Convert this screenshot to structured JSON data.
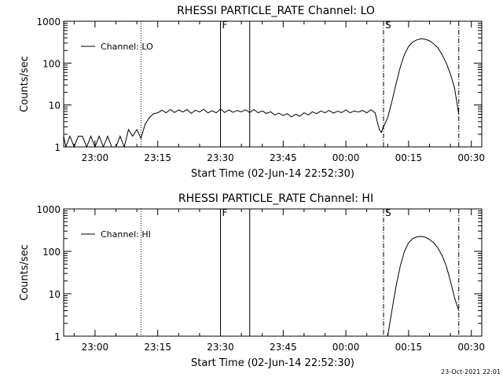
{
  "footer": {
    "timestamp": "23-Oct-2021 22:01"
  },
  "chart_data": [
    {
      "type": "line",
      "title": "RHESSI PARTICLE_RATE Channel: LO",
      "xlabel": "Start Time (02-Jun-14 22:52:30)",
      "ylabel": "Counts/sec",
      "yscale": "log",
      "ylim": [
        1,
        1000
      ],
      "xlim": [
        "22:52:30",
        "00:32:30"
      ],
      "x_tick_labels": [
        "23:00",
        "23:15",
        "23:30",
        "23:45",
        "00:00",
        "00:15",
        "00:30"
      ],
      "y_tick_labels": [
        "1",
        "10",
        "100",
        "1000"
      ],
      "legend": {
        "position": "top-left",
        "entries": [
          "Channel: LO"
        ]
      },
      "markers": [
        {
          "time": "23:11",
          "style": "dotted"
        },
        {
          "time": "23:30",
          "style": "solid",
          "label": "F"
        },
        {
          "time": "23:37",
          "style": "solid"
        },
        {
          "time": "00:09",
          "style": "dash-dot",
          "label": "S"
        },
        {
          "time": "00:27",
          "style": "dash-dot"
        }
      ],
      "series": [
        {
          "name": "Channel: LO",
          "segments": [
            {
              "x": [
                "22:52:30",
                "22:53",
                "22:54",
                "22:55",
                "22:56",
                "22:57",
                "22:58",
                "22:59",
                "23:00",
                "23:01",
                "23:02",
                "23:03",
                "23:04",
                "23:05",
                "23:06",
                "23:07",
                "23:08",
                "23:09",
                "23:10",
                "23:11",
                "23:12",
                "23:13",
                "23:14",
                "23:15",
                "23:16",
                "23:17",
                "23:18",
                "23:19",
                "23:20",
                "23:21",
                "23:22",
                "23:23",
                "23:24",
                "23:25",
                "23:26",
                "23:27",
                "23:28",
                "23:29",
                "23:30",
                "23:31",
                "23:32",
                "23:33",
                "23:34",
                "23:35",
                "23:36",
                "23:37",
                "23:38",
                "23:39",
                "23:40",
                "23:41",
                "23:42",
                "23:43",
                "23:44",
                "23:45",
                "23:46",
                "23:47",
                "23:48",
                "23:49",
                "23:50",
                "23:51",
                "23:52",
                "23:53",
                "23:54",
                "23:55",
                "23:56",
                "23:57",
                "23:58",
                "23:59",
                "00:00",
                "00:01",
                "00:02",
                "00:03",
                "00:04",
                "00:05",
                "00:06",
                "00:07",
                "00:07:30",
                "00:08",
                "00:08:30",
                "00:09"
              ],
              "y": [
                1.8,
                1,
                1.8,
                1,
                1.8,
                1.8,
                1,
                1.8,
                1,
                1.8,
                1,
                1.8,
                1,
                1,
                1.8,
                1,
                2.6,
                1.8,
                2.6,
                1.6,
                3.5,
                5,
                6.2,
                6.5,
                7.5,
                6.5,
                7.8,
                6.6,
                7.6,
                6.8,
                7.8,
                6.3,
                7.5,
                6.8,
                7.9,
                6.5,
                7.3,
                6.5,
                8,
                6.6,
                7.6,
                6.7,
                7.4,
                6.9,
                7.7,
                6.6,
                7.8,
                6.5,
                7.2,
                6.3,
                6.9,
                5.8,
                6.4,
                5.6,
                6.2,
                5.2,
                6,
                5.4,
                6.5,
                5.8,
                6.9,
                6.2,
                7.2,
                6.5,
                7.4,
                6.4,
                7.1,
                6.6,
                7.6,
                6.5,
                7.2,
                6.8,
                7.4,
                6.5,
                7.7,
                6.5,
                4,
                2.6,
                2.2,
                3.2
              ]
            },
            {
              "x": [
                "00:09",
                "00:10",
                "00:11",
                "00:12",
                "00:13",
                "00:14",
                "00:15",
                "00:16",
                "00:17",
                "00:18",
                "00:19",
                "00:20",
                "00:21",
                "00:22",
                "00:23",
                "00:24",
                "00:25",
                "00:26",
                "00:27"
              ],
              "y": [
                3,
                5,
                12,
                32,
                80,
                160,
                250,
                320,
                360,
                380,
                370,
                340,
                290,
                230,
                160,
                100,
                55,
                25,
                6
              ]
            }
          ]
        }
      ]
    },
    {
      "type": "line",
      "title": "RHESSI PARTICLE_RATE Channel: HI",
      "xlabel": "Start Time (02-Jun-14 22:52:30)",
      "ylabel": "Counts/sec",
      "yscale": "log",
      "ylim": [
        1,
        1000
      ],
      "xlim": [
        "22:52:30",
        "00:32:30"
      ],
      "x_tick_labels": [
        "23:00",
        "23:15",
        "23:30",
        "23:45",
        "00:00",
        "00:15",
        "00:30"
      ],
      "y_tick_labels": [
        "1",
        "10",
        "100",
        "1000"
      ],
      "legend": {
        "position": "top-left",
        "entries": [
          "Channel: HI"
        ]
      },
      "markers": [
        {
          "time": "23:11",
          "style": "dotted"
        },
        {
          "time": "23:30",
          "style": "solid",
          "label": "F"
        },
        {
          "time": "23:37",
          "style": "solid"
        },
        {
          "time": "00:09",
          "style": "dash-dot",
          "label": "S"
        },
        {
          "time": "00:27",
          "style": "dash-dot"
        }
      ],
      "series": [
        {
          "name": "Channel: HI",
          "segments": [
            {
              "x": [
                "00:10",
                "00:11",
                "00:12",
                "00:13",
                "00:14",
                "00:15",
                "00:16",
                "00:17",
                "00:18",
                "00:19",
                "00:20",
                "00:21",
                "00:22",
                "00:23",
                "00:24",
                "00:25",
                "00:26",
                "00:27"
              ],
              "y": [
                1,
                4,
                15,
                45,
                100,
                160,
                200,
                220,
                225,
                215,
                190,
                160,
                120,
                80,
                45,
                20,
                8,
                4
              ]
            }
          ]
        }
      ]
    }
  ]
}
